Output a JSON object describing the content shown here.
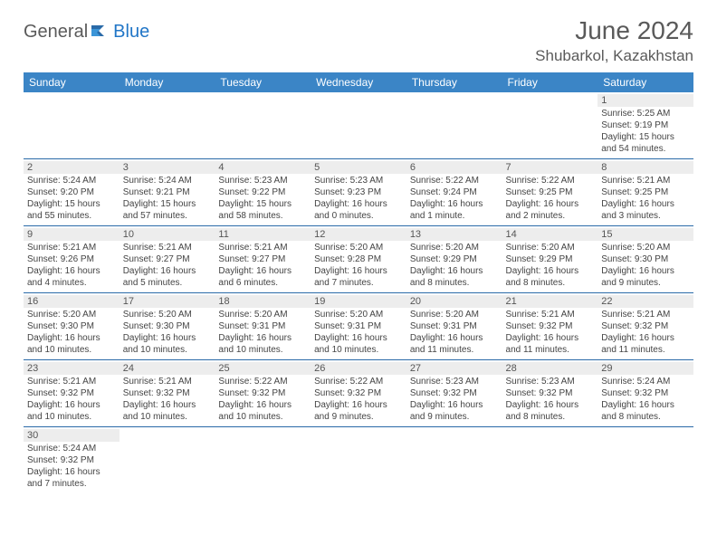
{
  "logo": {
    "text1": "General",
    "text2": "Blue"
  },
  "title": "June 2024",
  "location": "Shubarkol, Kazakhstan",
  "colors": {
    "header_bg": "#3b85c6",
    "header_text": "#ffffff",
    "row_border": "#2a6aa8",
    "daynum_bg": "#ededed",
    "text": "#444444",
    "logo_gray": "#5a5a5a",
    "logo_blue": "#2176c7"
  },
  "weekdays": [
    "Sunday",
    "Monday",
    "Tuesday",
    "Wednesday",
    "Thursday",
    "Friday",
    "Saturday"
  ],
  "weeks": [
    [
      null,
      null,
      null,
      null,
      null,
      null,
      {
        "n": "1",
        "sunrise": "5:25 AM",
        "sunset": "9:19 PM",
        "daylight": "15 hours and 54 minutes."
      }
    ],
    [
      {
        "n": "2",
        "sunrise": "5:24 AM",
        "sunset": "9:20 PM",
        "daylight": "15 hours and 55 minutes."
      },
      {
        "n": "3",
        "sunrise": "5:24 AM",
        "sunset": "9:21 PM",
        "daylight": "15 hours and 57 minutes."
      },
      {
        "n": "4",
        "sunrise": "5:23 AM",
        "sunset": "9:22 PM",
        "daylight": "15 hours and 58 minutes."
      },
      {
        "n": "5",
        "sunrise": "5:23 AM",
        "sunset": "9:23 PM",
        "daylight": "16 hours and 0 minutes."
      },
      {
        "n": "6",
        "sunrise": "5:22 AM",
        "sunset": "9:24 PM",
        "daylight": "16 hours and 1 minute."
      },
      {
        "n": "7",
        "sunrise": "5:22 AM",
        "sunset": "9:25 PM",
        "daylight": "16 hours and 2 minutes."
      },
      {
        "n": "8",
        "sunrise": "5:21 AM",
        "sunset": "9:25 PM",
        "daylight": "16 hours and 3 minutes."
      }
    ],
    [
      {
        "n": "9",
        "sunrise": "5:21 AM",
        "sunset": "9:26 PM",
        "daylight": "16 hours and 4 minutes."
      },
      {
        "n": "10",
        "sunrise": "5:21 AM",
        "sunset": "9:27 PM",
        "daylight": "16 hours and 5 minutes."
      },
      {
        "n": "11",
        "sunrise": "5:21 AM",
        "sunset": "9:27 PM",
        "daylight": "16 hours and 6 minutes."
      },
      {
        "n": "12",
        "sunrise": "5:20 AM",
        "sunset": "9:28 PM",
        "daylight": "16 hours and 7 minutes."
      },
      {
        "n": "13",
        "sunrise": "5:20 AM",
        "sunset": "9:29 PM",
        "daylight": "16 hours and 8 minutes."
      },
      {
        "n": "14",
        "sunrise": "5:20 AM",
        "sunset": "9:29 PM",
        "daylight": "16 hours and 8 minutes."
      },
      {
        "n": "15",
        "sunrise": "5:20 AM",
        "sunset": "9:30 PM",
        "daylight": "16 hours and 9 minutes."
      }
    ],
    [
      {
        "n": "16",
        "sunrise": "5:20 AM",
        "sunset": "9:30 PM",
        "daylight": "16 hours and 10 minutes."
      },
      {
        "n": "17",
        "sunrise": "5:20 AM",
        "sunset": "9:30 PM",
        "daylight": "16 hours and 10 minutes."
      },
      {
        "n": "18",
        "sunrise": "5:20 AM",
        "sunset": "9:31 PM",
        "daylight": "16 hours and 10 minutes."
      },
      {
        "n": "19",
        "sunrise": "5:20 AM",
        "sunset": "9:31 PM",
        "daylight": "16 hours and 10 minutes."
      },
      {
        "n": "20",
        "sunrise": "5:20 AM",
        "sunset": "9:31 PM",
        "daylight": "16 hours and 11 minutes."
      },
      {
        "n": "21",
        "sunrise": "5:21 AM",
        "sunset": "9:32 PM",
        "daylight": "16 hours and 11 minutes."
      },
      {
        "n": "22",
        "sunrise": "5:21 AM",
        "sunset": "9:32 PM",
        "daylight": "16 hours and 11 minutes."
      }
    ],
    [
      {
        "n": "23",
        "sunrise": "5:21 AM",
        "sunset": "9:32 PM",
        "daylight": "16 hours and 10 minutes."
      },
      {
        "n": "24",
        "sunrise": "5:21 AM",
        "sunset": "9:32 PM",
        "daylight": "16 hours and 10 minutes."
      },
      {
        "n": "25",
        "sunrise": "5:22 AM",
        "sunset": "9:32 PM",
        "daylight": "16 hours and 10 minutes."
      },
      {
        "n": "26",
        "sunrise": "5:22 AM",
        "sunset": "9:32 PM",
        "daylight": "16 hours and 9 minutes."
      },
      {
        "n": "27",
        "sunrise": "5:23 AM",
        "sunset": "9:32 PM",
        "daylight": "16 hours and 9 minutes."
      },
      {
        "n": "28",
        "sunrise": "5:23 AM",
        "sunset": "9:32 PM",
        "daylight": "16 hours and 8 minutes."
      },
      {
        "n": "29",
        "sunrise": "5:24 AM",
        "sunset": "9:32 PM",
        "daylight": "16 hours and 8 minutes."
      }
    ],
    [
      {
        "n": "30",
        "sunrise": "5:24 AM",
        "sunset": "9:32 PM",
        "daylight": "16 hours and 7 minutes."
      },
      null,
      null,
      null,
      null,
      null,
      null
    ]
  ],
  "labels": {
    "sunrise": "Sunrise:",
    "sunset": "Sunset:",
    "daylight": "Daylight:"
  }
}
